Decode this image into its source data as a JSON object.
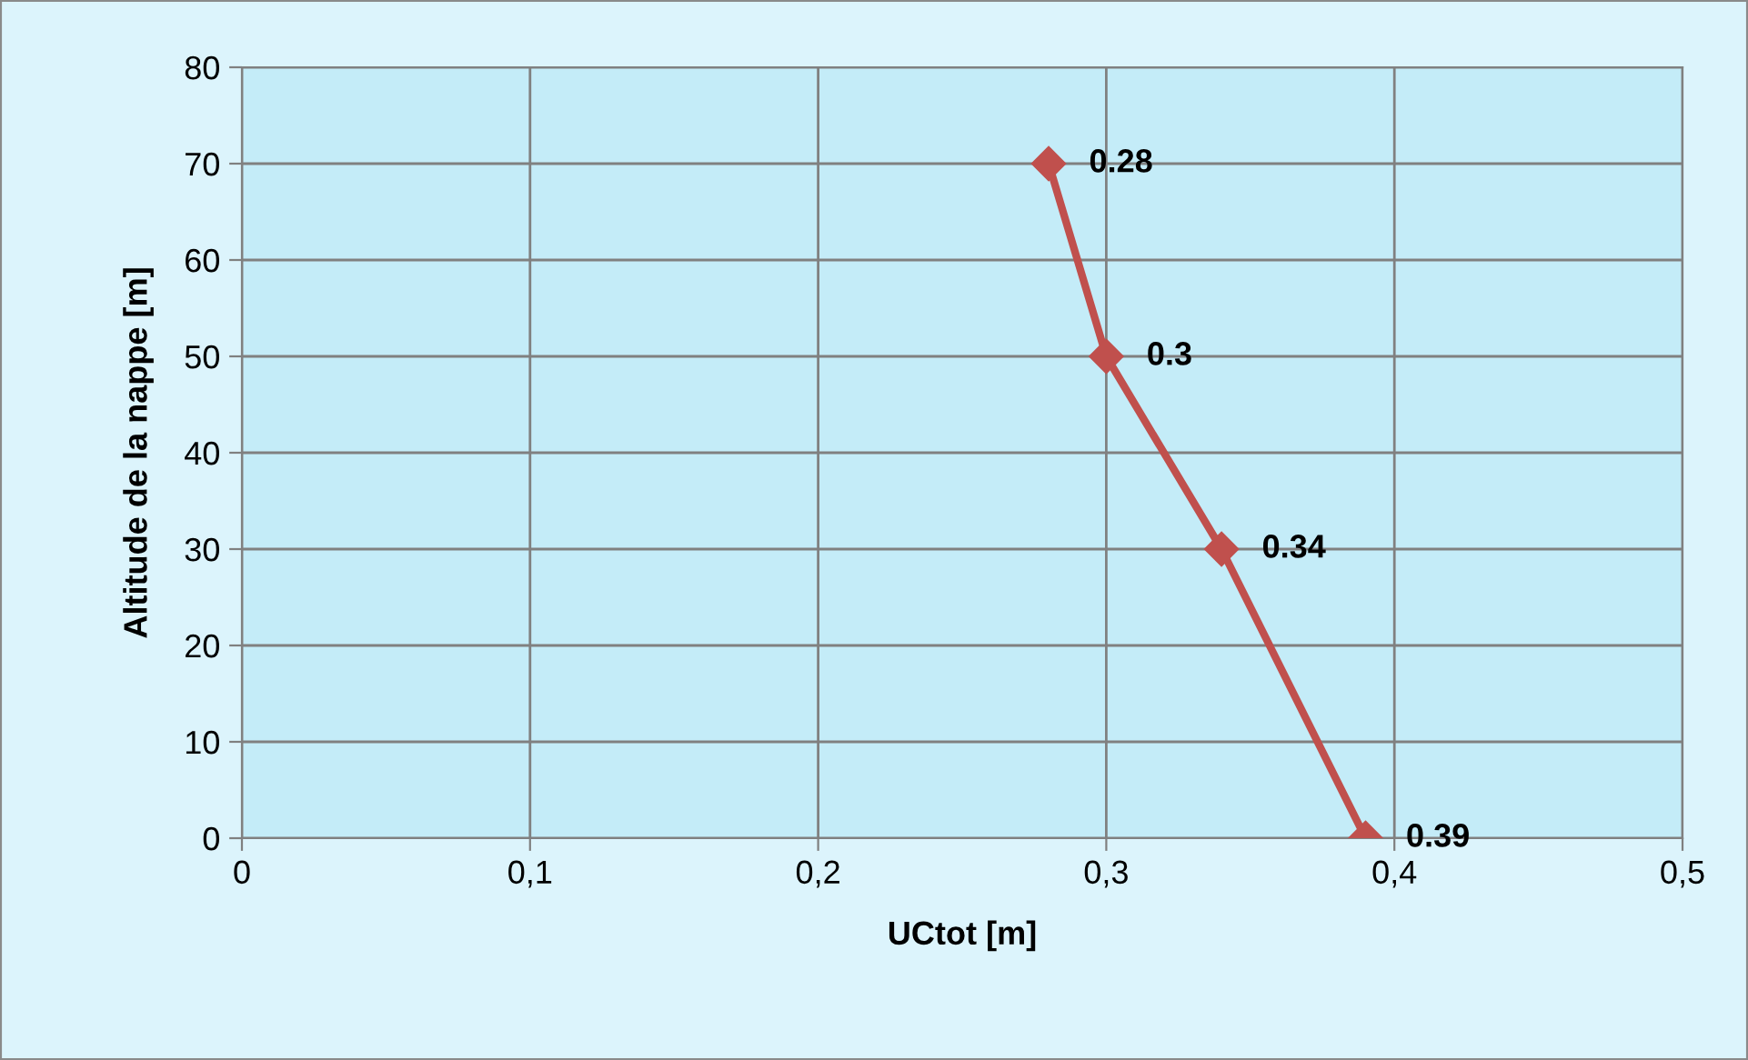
{
  "chart_data": {
    "type": "line",
    "xlabel": "UCtot [m]",
    "ylabel": "Altitude de la nappe [m]",
    "x": [
      0.28,
      0.3,
      0.34,
      0.39
    ],
    "series": [
      {
        "color": "#c0504d",
        "values": [
          70,
          50,
          30,
          0
        ]
      }
    ],
    "annotations": [
      {
        "text": "0.28",
        "x": 0.28,
        "y": 70
      },
      {
        "text": "0.3",
        "x": 0.3,
        "y": 50
      },
      {
        "text": "0.34",
        "x": 0.34,
        "y": 30
      },
      {
        "text": "0.39",
        "x": 0.39,
        "y": 0
      }
    ],
    "xlim": [
      0,
      0.5
    ],
    "xticks": [
      0,
      {
        "value": 0.1,
        "label": "0,1"
      },
      {
        "value": 0.2,
        "label": "0,2"
      },
      {
        "value": 0.3,
        "label": "0,3"
      },
      {
        "value": 0.4,
        "label": "0,4"
      },
      {
        "value": 0.5,
        "label": "0,5"
      }
    ],
    "ylim": [
      0,
      80
    ],
    "yticks": [
      0,
      10,
      20,
      30,
      40,
      50,
      60,
      70,
      80
    ],
    "grid": true,
    "marker": "diamond",
    "line_style": "solid"
  }
}
